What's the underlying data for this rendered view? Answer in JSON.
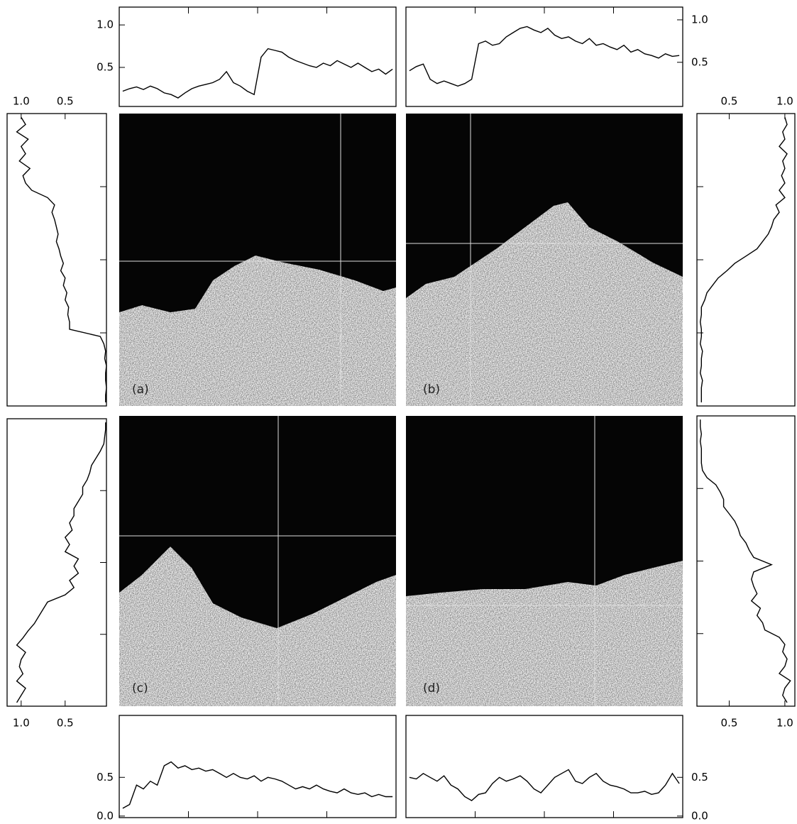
{
  "panels": [
    "(a)",
    "(b)",
    "(c)",
    "(d)"
  ],
  "chart_data": [
    {
      "type": "line",
      "orientation": "horizontal",
      "color": "#000000",
      "ylim": [
        0.04,
        1.21
      ],
      "yticks": [
        0.5,
        {
          "value": 1,
          "label": "1.0"
        }
      ],
      "values": [
        0.22,
        0.25,
        0.27,
        0.24,
        0.28,
        0.25,
        0.2,
        0.18,
        0.14,
        0.2,
        0.25,
        0.28,
        0.3,
        0.32,
        0.36,
        0.45,
        0.32,
        0.28,
        0.22,
        0.18,
        0.62,
        0.72,
        0.7,
        0.68,
        0.62,
        0.58,
        0.55,
        0.52,
        0.5,
        0.55,
        0.52,
        0.58,
        0.54,
        0.5,
        0.55,
        0.5,
        0.45,
        0.48,
        0.42,
        0.48
      ]
    },
    {
      "type": "line",
      "orientation": "horizontal",
      "color": "#000000",
      "ylim": [
        -0.02,
        1.15
      ],
      "yticks": [
        0.5,
        {
          "value": 1,
          "label": "1.0"
        }
      ],
      "values": [
        0.4,
        0.45,
        0.48,
        0.3,
        0.25,
        0.28,
        0.25,
        0.22,
        0.25,
        0.3,
        0.72,
        0.75,
        0.7,
        0.72,
        0.8,
        0.85,
        0.9,
        0.92,
        0.88,
        0.85,
        0.9,
        0.82,
        0.78,
        0.8,
        0.75,
        0.72,
        0.78,
        0.7,
        0.72,
        0.68,
        0.65,
        0.7,
        0.62,
        0.65,
        0.6,
        0.58,
        0.55,
        0.6,
        0.57,
        0.58
      ]
    },
    {
      "type": "line",
      "orientation": "vertical",
      "color": "#000000",
      "xlim": [
        1.16,
        0.03
      ],
      "xticks": [
        {
          "value": 1,
          "label": "1.0"
        },
        0.5
      ],
      "values": [
        1.0,
        0.95,
        1.05,
        0.92,
        1.0,
        0.95,
        1.02,
        0.9,
        0.98,
        0.95,
        0.88,
        0.7,
        0.62,
        0.65,
        0.62,
        0.6,
        0.58,
        0.6,
        0.57,
        0.55,
        0.52,
        0.55,
        0.5,
        0.52,
        0.48,
        0.5,
        0.46,
        0.47,
        0.45,
        0.45,
        0.1,
        0.06,
        0.04,
        0.05,
        0.03,
        0.04,
        0.04,
        0.03,
        0.04,
        0.04
      ]
    },
    {
      "type": "line",
      "orientation": "vertical",
      "color": "#000000",
      "xlim": [
        0.21,
        1.09
      ],
      "xticks": [
        0.5,
        {
          "value": 1,
          "label": "1.0"
        }
      ],
      "values": [
        1.0,
        1.02,
        0.98,
        1.0,
        0.95,
        1.02,
        0.98,
        1.0,
        0.97,
        1.0,
        0.95,
        1.0,
        0.92,
        0.95,
        0.9,
        0.88,
        0.85,
        0.8,
        0.75,
        0.65,
        0.55,
        0.48,
        0.4,
        0.35,
        0.3,
        0.28,
        0.25,
        0.25,
        0.24,
        0.25,
        0.25,
        0.24,
        0.26,
        0.25,
        0.25,
        0.24,
        0.26,
        0.25,
        0.25,
        0.25
      ]
    },
    {
      "type": "line",
      "orientation": "vertical",
      "color": "#000000",
      "xlim": [
        1.16,
        0.03
      ],
      "xticks": [
        {
          "value": 1,
          "label": "1.0"
        },
        0.5
      ],
      "values": [
        0.04,
        0.04,
        0.05,
        0.06,
        0.1,
        0.15,
        0.2,
        0.22,
        0.25,
        0.3,
        0.3,
        0.35,
        0.4,
        0.4,
        0.45,
        0.42,
        0.5,
        0.45,
        0.5,
        0.35,
        0.4,
        0.35,
        0.45,
        0.4,
        0.5,
        0.7,
        0.75,
        0.8,
        0.85,
        0.92,
        0.98,
        1.05,
        0.95,
        1.0,
        1.02,
        0.98,
        1.05,
        0.95,
        1.0,
        1.05
      ]
    },
    {
      "type": "line",
      "orientation": "vertical",
      "color": "#000000",
      "xlim": [
        0.21,
        1.09
      ],
      "xticks": [
        0.5,
        {
          "value": 1,
          "label": "1.0"
        }
      ],
      "values": [
        0.24,
        0.24,
        0.25,
        0.24,
        0.25,
        0.25,
        0.25,
        0.26,
        0.3,
        0.38,
        0.42,
        0.45,
        0.45,
        0.5,
        0.55,
        0.58,
        0.6,
        0.65,
        0.68,
        0.72,
        0.88,
        0.72,
        0.7,
        0.72,
        0.75,
        0.7,
        0.78,
        0.75,
        0.8,
        0.82,
        0.95,
        1.0,
        0.98,
        1.02,
        1.0,
        0.95,
        1.05,
        1.0,
        0.98,
        1.02
      ]
    },
    {
      "type": "line",
      "orientation": "horizontal",
      "color": "#000000",
      "ylim": [
        -0.02,
        1.3
      ],
      "yticks": [
        {
          "value": 0,
          "label": "0.0"
        },
        0.5
      ],
      "values": [
        0.1,
        0.15,
        0.4,
        0.35,
        0.45,
        0.4,
        0.65,
        0.7,
        0.62,
        0.65,
        0.6,
        0.62,
        0.58,
        0.6,
        0.55,
        0.5,
        0.55,
        0.5,
        0.48,
        0.52,
        0.45,
        0.5,
        0.48,
        0.45,
        0.4,
        0.35,
        0.38,
        0.35,
        0.4,
        0.35,
        0.32,
        0.3,
        0.35,
        0.3,
        0.28,
        0.3,
        0.25,
        0.28,
        0.25,
        0.25
      ]
    },
    {
      "type": "line",
      "orientation": "horizontal",
      "color": "#000000",
      "ylim": [
        -0.02,
        1.3
      ],
      "yticks": [
        {
          "value": 0,
          "label": "0.0"
        },
        0.5
      ],
      "values": [
        0.5,
        0.48,
        0.55,
        0.5,
        0.45,
        0.52,
        0.4,
        0.35,
        0.25,
        0.2,
        0.28,
        0.3,
        0.42,
        0.5,
        0.45,
        0.48,
        0.52,
        0.45,
        0.35,
        0.3,
        0.4,
        0.5,
        0.55,
        0.6,
        0.45,
        0.42,
        0.5,
        0.55,
        0.45,
        0.4,
        0.38,
        0.35,
        0.3,
        0.3,
        0.32,
        0.28,
        0.3,
        0.4,
        0.55,
        0.42
      ]
    }
  ]
}
